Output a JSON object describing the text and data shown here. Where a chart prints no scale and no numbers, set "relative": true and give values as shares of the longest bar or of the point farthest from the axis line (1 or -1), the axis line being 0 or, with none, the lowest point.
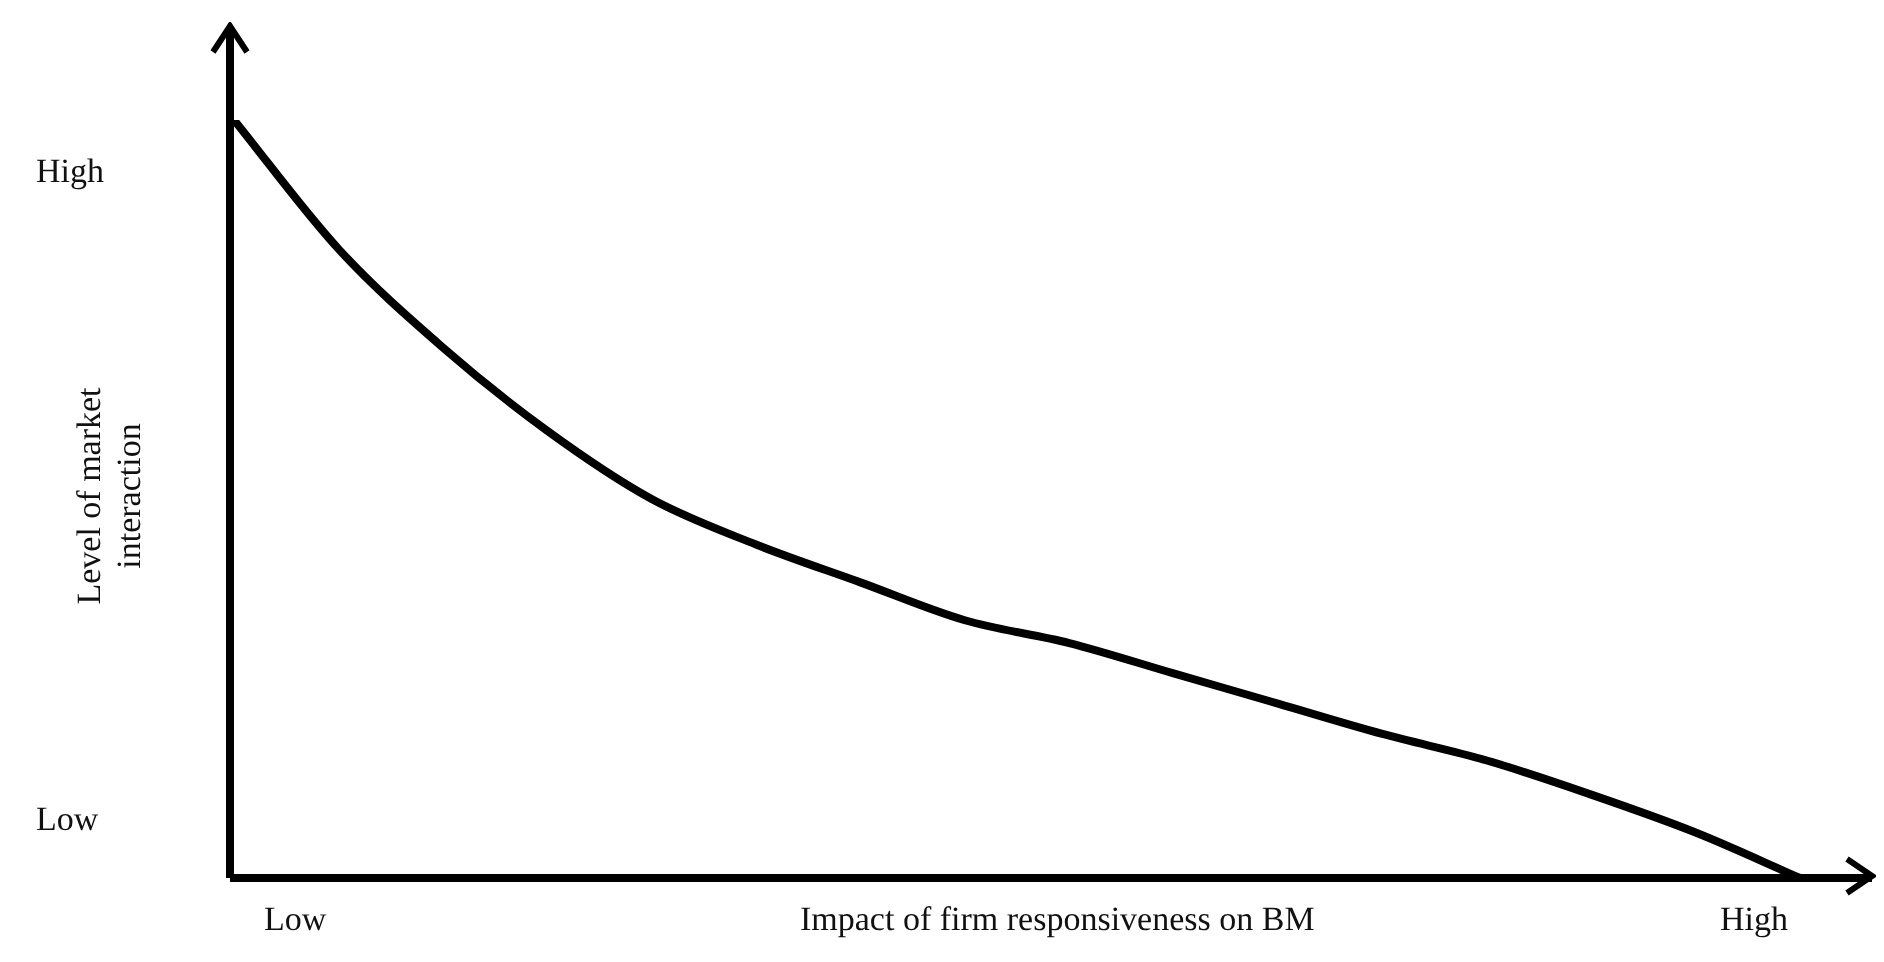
{
  "chart_data": {
    "type": "line",
    "relative": true,
    "xlabel": "Impact of firm responsiveness on BM",
    "ylabel": "Level of market interaction",
    "annotations": [
      "High",
      "Low",
      "Low",
      "High"
    ],
    "categories": [
      null,
      null,
      null,
      null,
      null,
      null,
      null,
      null,
      null,
      null,
      null,
      null,
      null,
      null,
      null,
      null
    ],
    "series": [
      {
        "color": "#000000",
        "values": [
          1.0,
          0.83,
          0.7,
          0.59,
          0.5,
          0.44,
          0.39,
          0.34,
          0.31,
          0.27,
          0.23,
          0.19,
          0.155,
          0.11,
          0.06,
          0.0
        ]
      }
    ],
    "grid": false,
    "legend": false,
    "marker": "none",
    "line_style": "solid"
  }
}
